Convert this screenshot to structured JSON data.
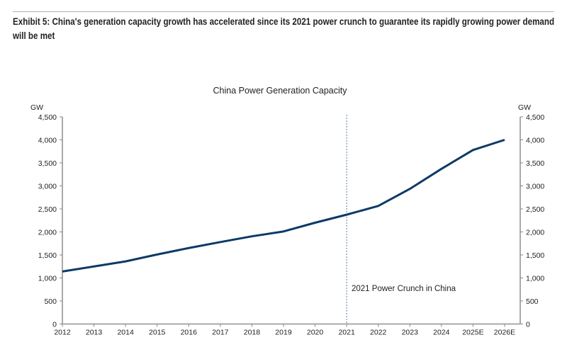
{
  "exhibit_title": "Exhibit 5: China's generation capacity growth has accelerated since its 2021 power crunch to guarantee its rapidly growing power demand will be met",
  "chart_data": {
    "type": "line",
    "title": "China Power Generation Capacity",
    "ylabel_left": "GW",
    "ylabel_right": "GW",
    "categories": [
      "2012",
      "2013",
      "2014",
      "2015",
      "2016",
      "2017",
      "2018",
      "2019",
      "2020",
      "2021",
      "2022",
      "2023",
      "2024",
      "2025E",
      "2026E"
    ],
    "series": [
      {
        "values": [
          1140,
          1250,
          1360,
          1510,
          1650,
          1780,
          1905,
          2010,
          2200,
          2375,
          2565,
          2935,
          3370,
          3780,
          4000
        ],
        "color": "#0c3a66"
      }
    ],
    "ylim": [
      0,
      4500
    ],
    "yticks": [
      0,
      500,
      1000,
      1500,
      2000,
      2500,
      3000,
      3500,
      4000,
      4500
    ],
    "ytick_labels": [
      "0",
      "500",
      "1,000",
      "1,500",
      "2,000",
      "2,500",
      "3,000",
      "3,500",
      "4,000",
      "4,500"
    ],
    "grid": false,
    "annotation": {
      "x": "2021",
      "text": "2021 Power Crunch in China",
      "style": "dashed vertical line"
    }
  }
}
